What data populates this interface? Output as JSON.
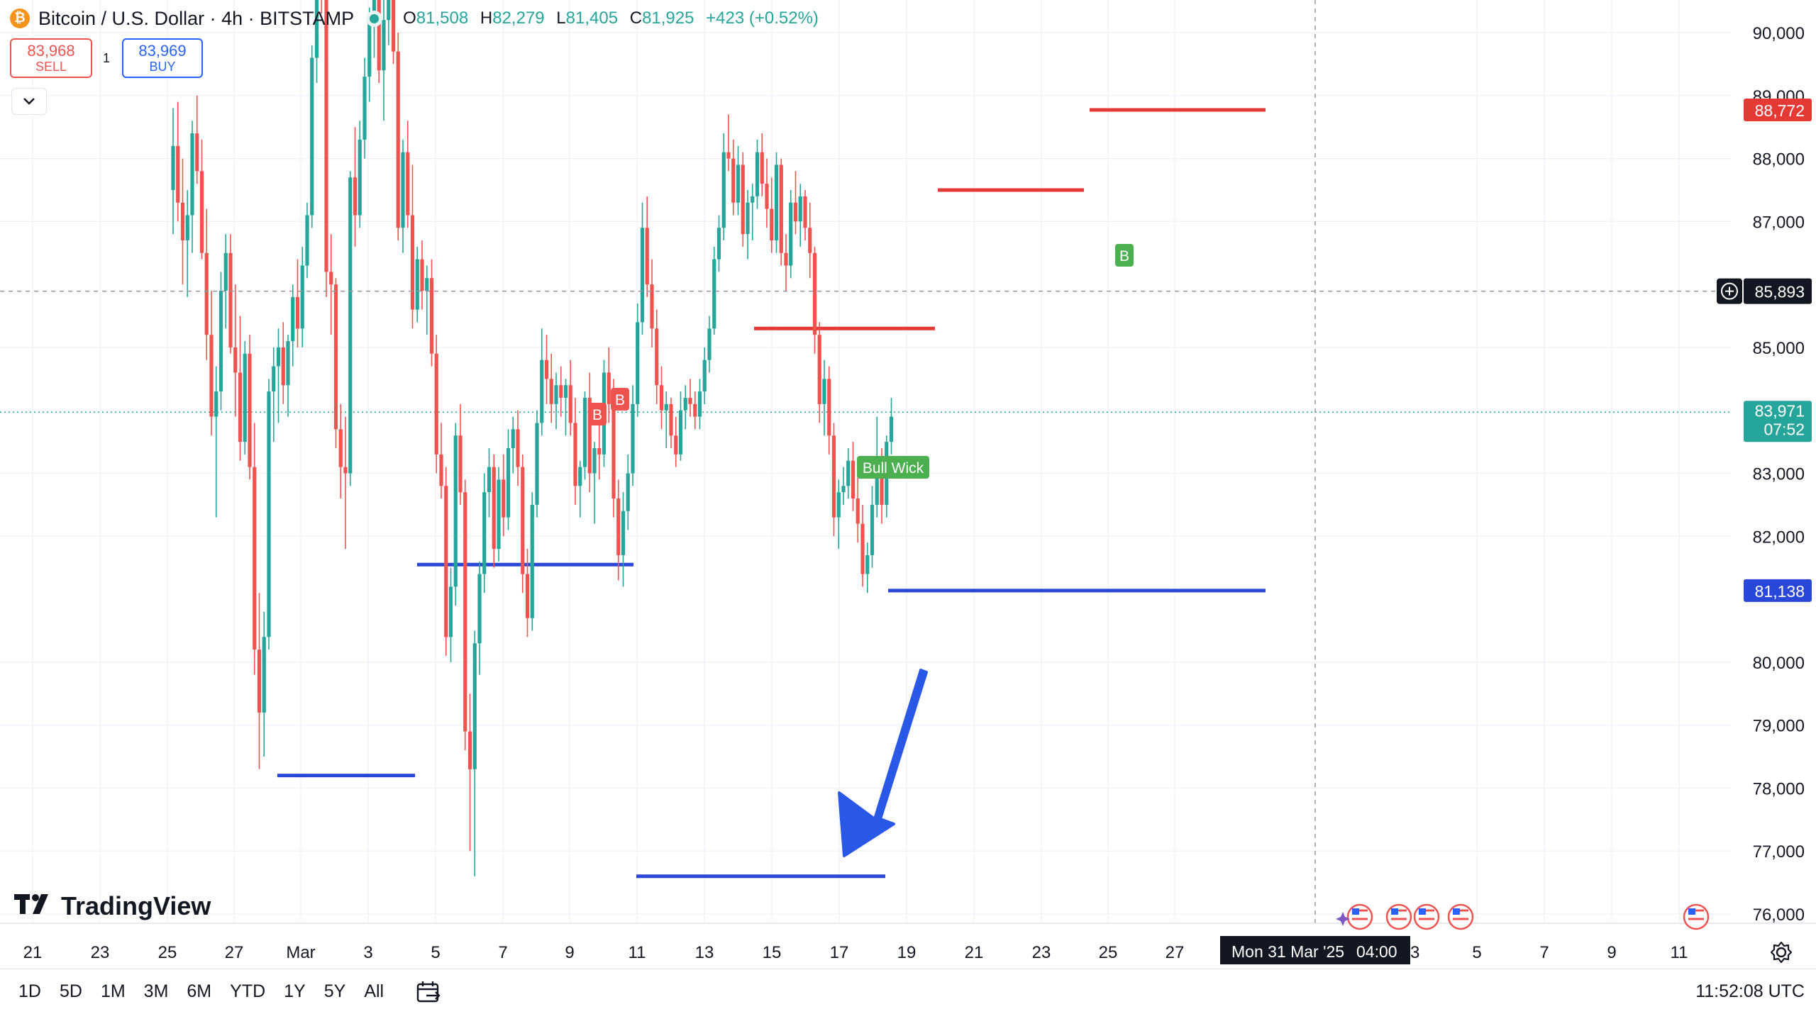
{
  "header": {
    "coin_icon": "₿",
    "symbol": "Bitcoin / U.S. Dollar · 4h · BITSTAMP",
    "ohlc": {
      "o_label": "O",
      "o": "81,508",
      "h_label": "H",
      "h": "82,279",
      "l_label": "L",
      "l": "81,405",
      "c_label": "C",
      "c": "81,925",
      "change": "+423 (+0.52%)"
    }
  },
  "trade": {
    "sell_price": "83,968",
    "sell_label": "SELL",
    "quantity": "1",
    "buy_price": "83,969",
    "buy_label": "BUY"
  },
  "watermark": "TradingView",
  "toolbar": {
    "timeframes": [
      "1D",
      "5D",
      "1M",
      "3M",
      "6M",
      "YTD",
      "1Y",
      "5Y",
      "All"
    ],
    "clock": "11:52:08 UTC"
  },
  "colors": {
    "up": "#26a69a",
    "down": "#ef5350",
    "blue_line": "#2947d8",
    "red_line": "#e53935",
    "arrow": "#2958e6"
  },
  "chart_data": {
    "type": "candlestick",
    "interval": "4h",
    "y_range": [
      75800,
      90400
    ],
    "y_ticks": [
      "90,000",
      "89,000",
      "88,000",
      "87,000",
      "85,000",
      "83,000",
      "82,000",
      "80,000",
      "79,000",
      "78,000",
      "77,000",
      "76,000"
    ],
    "x_ticks": [
      "21",
      "23",
      "25",
      "27",
      "Mar",
      "3",
      "5",
      "7",
      "9",
      "11",
      "13",
      "15",
      "17",
      "19",
      "21",
      "23",
      "25",
      "27",
      "5",
      "7",
      "9",
      "11"
    ],
    "x_ticks_hidden_note": "",
    "crosshair": {
      "price": "85,893",
      "date_label": "Mon 31 Mar '25",
      "time_label": "04:00",
      "hidden_tick": "3"
    },
    "price_labels": {
      "last_price": "83,971",
      "countdown": "07:52",
      "red_level": "88,772",
      "blue_level": "81,138"
    },
    "horizontal_lines": [
      {
        "color": "blue",
        "price": 78200,
        "from": "Feb 26",
        "to": "Mar 4"
      },
      {
        "color": "blue",
        "price": 81550,
        "from": "Mar 4",
        "to": "Mar 10"
      },
      {
        "color": "blue",
        "price": 76600,
        "from": "Mar 11",
        "to": "Mar 18"
      },
      {
        "color": "blue",
        "price": 81138,
        "from": "Mar 18",
        "to": "Mar 29"
      },
      {
        "color": "red",
        "price": 85300,
        "from": "Mar 14",
        "to": "Mar 19"
      },
      {
        "color": "red",
        "price": 87500,
        "from": "Mar 20",
        "to": "Mar 24"
      },
      {
        "color": "red",
        "price": 88772,
        "from": "Mar 24",
        "to": "Mar 29"
      }
    ],
    "annotations": [
      {
        "text": "B",
        "kind": "sell-signal",
        "date": "Mar 9"
      },
      {
        "text": "B",
        "kind": "sell-signal",
        "date": "Mar 10"
      },
      {
        "text": "B",
        "kind": "buy-signal",
        "date": "Mar 25"
      },
      {
        "text": "Bull Wick",
        "kind": "buy-signal",
        "date": "Mar 19"
      }
    ],
    "candles_approx": [
      [
        87500,
        88800,
        86800,
        88200
      ],
      [
        88200,
        88900,
        87000,
        87300
      ],
      [
        87300,
        88000,
        86000,
        86700
      ],
      [
        86700,
        87500,
        85800,
        87100
      ],
      [
        87100,
        88600,
        86500,
        88400
      ],
      [
        88400,
        89000,
        87600,
        87800
      ],
      [
        87800,
        88300,
        86400,
        86500
      ],
      [
        86500,
        87200,
        84800,
        85200
      ],
      [
        85200,
        85900,
        83600,
        83900
      ],
      [
        83900,
        84700,
        82300,
        84300
      ],
      [
        84300,
        86200,
        84000,
        85900
      ],
      [
        85900,
        86800,
        85300,
        86500
      ],
      [
        86500,
        86800,
        84900,
        85000
      ],
      [
        85000,
        86000,
        83900,
        84600
      ],
      [
        84600,
        85500,
        83200,
        83500
      ],
      [
        83500,
        85100,
        83300,
        84900
      ],
      [
        84900,
        85200,
        82900,
        83100
      ],
      [
        83100,
        83800,
        79800,
        80200
      ],
      [
        80200,
        81100,
        78300,
        79200
      ],
      [
        79200,
        80800,
        78500,
        80400
      ],
      [
        80400,
        84500,
        80200,
        84300
      ],
      [
        84300,
        85000,
        83500,
        84700
      ],
      [
        84700,
        85300,
        83800,
        85000
      ],
      [
        85000,
        85400,
        84100,
        84400
      ],
      [
        84400,
        85200,
        83900,
        85100
      ],
      [
        85100,
        86000,
        84700,
        85800
      ],
      [
        85800,
        86400,
        85000,
        85300
      ],
      [
        85300,
        86600,
        85000,
        86300
      ],
      [
        86300,
        87300,
        86100,
        87100
      ],
      [
        87100,
        89800,
        86900,
        89600
      ],
      [
        89600,
        92000,
        89200,
        91800
      ],
      [
        91800,
        92500,
        90300,
        90800
      ],
      [
        90800,
        91200,
        85800,
        86200
      ],
      [
        86200,
        86800,
        85200,
        86000
      ],
      [
        86000,
        86100,
        83400,
        83700
      ],
      [
        83700,
        84100,
        82600,
        83100
      ],
      [
        83100,
        83900,
        81800,
        83000
      ],
      [
        83000,
        87800,
        82800,
        87700
      ],
      [
        87700,
        88500,
        86600,
        87100
      ],
      [
        87100,
        88600,
        86900,
        88300
      ],
      [
        88300,
        89600,
        88000,
        89300
      ],
      [
        89300,
        90400,
        88900,
        90200
      ],
      [
        90200,
        91200,
        89600,
        90700
      ],
      [
        90700,
        91000,
        89200,
        89400
      ],
      [
        89400,
        90600,
        88600,
        90200
      ],
      [
        90200,
        92800,
        89800,
        92300
      ],
      [
        92300,
        92600,
        89500,
        89700
      ],
      [
        89700,
        90000,
        86700,
        86900
      ],
      [
        86900,
        88300,
        86500,
        88100
      ],
      [
        88100,
        88600,
        86900,
        87100
      ],
      [
        87100,
        87900,
        85300,
        85600
      ],
      [
        85600,
        86600,
        85400,
        86400
      ],
      [
        86400,
        86700,
        85600,
        85900
      ],
      [
        85900,
        86300,
        85200,
        86100
      ],
      [
        86100,
        86400,
        84700,
        84900
      ],
      [
        84900,
        85200,
        83000,
        83300
      ],
      [
        83300,
        83800,
        82600,
        82800
      ],
      [
        82800,
        83100,
        80100,
        80400
      ],
      [
        80400,
        81500,
        80000,
        81200
      ],
      [
        81200,
        83800,
        80900,
        83600
      ],
      [
        83600,
        84100,
        82500,
        82700
      ],
      [
        82700,
        82900,
        78600,
        78900
      ],
      [
        78900,
        79500,
        77000,
        78300
      ],
      [
        78300,
        80500,
        76600,
        80300
      ],
      [
        80300,
        81600,
        79800,
        81400
      ],
      [
        81400,
        83000,
        81100,
        82700
      ],
      [
        82700,
        83400,
        82300,
        83100
      ],
      [
        83100,
        83300,
        81500,
        81800
      ],
      [
        81800,
        83100,
        81600,
        82900
      ],
      [
        82900,
        83300,
        82000,
        82300
      ],
      [
        82300,
        83700,
        82100,
        83400
      ],
      [
        83400,
        83900,
        83000,
        83700
      ],
      [
        83700,
        84000,
        82800,
        83100
      ],
      [
        83100,
        83300,
        81100,
        81400
      ],
      [
        81400,
        81800,
        80400,
        80700
      ],
      [
        80700,
        82700,
        80500,
        82500
      ],
      [
        82500,
        84000,
        82300,
        83800
      ],
      [
        83800,
        85300,
        83600,
        84800
      ],
      [
        84800,
        85200,
        84100,
        84500
      ],
      [
        84500,
        84900,
        83800,
        84100
      ],
      [
        84100,
        84600,
        83700,
        84400
      ],
      [
        84400,
        84700,
        83900,
        84200
      ],
      [
        84200,
        84500,
        83600,
        84400
      ],
      [
        84400,
        84800,
        83600,
        83800
      ],
      [
        83800,
        84200,
        82500,
        82800
      ],
      [
        82800,
        83200,
        82300,
        83100
      ],
      [
        83100,
        84300,
        82900,
        84200
      ],
      [
        84200,
        84600,
        82700,
        83000
      ],
      [
        83000,
        83500,
        82200,
        83400
      ],
      [
        83400,
        83800,
        82900,
        83300
      ],
      [
        83300,
        84800,
        83100,
        84600
      ],
      [
        84600,
        85000,
        83800,
        84100
      ],
      [
        84100,
        84500,
        82300,
        82600
      ],
      [
        82600,
        82900,
        81300,
        81700
      ],
      [
        81700,
        82700,
        81200,
        82400
      ],
      [
        82400,
        83300,
        82100,
        83000
      ],
      [
        83000,
        84400,
        82800,
        84100
      ],
      [
        84100,
        85700,
        83900,
        85400
      ],
      [
        85400,
        87300,
        85200,
        86900
      ],
      [
        86900,
        87400,
        85800,
        86000
      ],
      [
        86000,
        86400,
        85000,
        85300
      ],
      [
        85300,
        85600,
        84100,
        84400
      ],
      [
        84400,
        84700,
        83700,
        84000
      ],
      [
        84000,
        84300,
        83400,
        84100
      ],
      [
        84100,
        84200,
        83400,
        83600
      ],
      [
        83600,
        83900,
        83100,
        83300
      ],
      [
        83300,
        84300,
        83200,
        84000
      ],
      [
        84000,
        84400,
        83700,
        84200
      ],
      [
        84200,
        84500,
        83900,
        84100
      ],
      [
        84100,
        84300,
        83700,
        83900
      ],
      [
        83900,
        84500,
        83700,
        84300
      ],
      [
        84300,
        85000,
        84100,
        84800
      ],
      [
        84800,
        85500,
        84600,
        85300
      ],
      [
        85300,
        86600,
        85200,
        86400
      ],
      [
        86400,
        87100,
        86200,
        86900
      ],
      [
        86900,
        88400,
        86700,
        88100
      ],
      [
        88100,
        88700,
        87800,
        88000
      ],
      [
        88000,
        88300,
        87100,
        87300
      ],
      [
        87300,
        88200,
        87100,
        87900
      ],
      [
        87900,
        88100,
        86600,
        86800
      ],
      [
        86800,
        87500,
        86400,
        87300
      ],
      [
        87300,
        87600,
        86700,
        87400
      ],
      [
        87400,
        88300,
        87200,
        88100
      ],
      [
        88100,
        88400,
        87400,
        87600
      ],
      [
        87600,
        88000,
        86900,
        87200
      ],
      [
        87200,
        87700,
        86500,
        86700
      ],
      [
        86700,
        88100,
        86500,
        87900
      ],
      [
        87900,
        88000,
        86300,
        86500
      ],
      [
        86500,
        86800,
        85900,
        86300
      ],
      [
        86300,
        87500,
        86100,
        87300
      ],
      [
        87300,
        87800,
        86800,
        87000
      ],
      [
        87000,
        87600,
        86600,
        87400
      ],
      [
        87400,
        87500,
        86700,
        86900
      ],
      [
        86900,
        87300,
        86100,
        86500
      ],
      [
        86500,
        86600,
        84900,
        85200
      ],
      [
        85200,
        85400,
        83800,
        84100
      ],
      [
        84100,
        84800,
        83600,
        84500
      ],
      [
        84500,
        84700,
        83300,
        83600
      ],
      [
        83600,
        83800,
        82000,
        82300
      ],
      [
        82300,
        82900,
        81800,
        82700
      ],
      [
        82700,
        83100,
        82500,
        82800
      ],
      [
        82800,
        83400,
        82600,
        83200
      ],
      [
        83200,
        83500,
        82400,
        82600
      ],
      [
        82600,
        83000,
        81900,
        82200
      ],
      [
        82200,
        82500,
        81200,
        81400
      ],
      [
        81400,
        81900,
        81100,
        81700
      ],
      [
        81700,
        82800,
        81500,
        82500
      ],
      [
        82500,
        83900,
        82300,
        83100
      ],
      [
        83100,
        83400,
        82200,
        82500
      ],
      [
        82500,
        83600,
        82300,
        83500
      ],
      [
        83500,
        84200,
        83300,
        83900
      ]
    ],
    "candle_start_x": 244,
    "candle_step": 6.75
  }
}
